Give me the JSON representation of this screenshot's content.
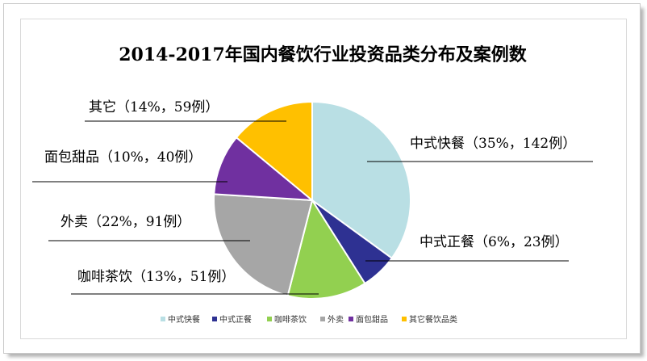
{
  "chart_data": {
    "type": "pie",
    "title": "2014-2017年国内餐饮行业投资品类分布及案例数",
    "slices": [
      {
        "name": "中式快餐",
        "label": "中式快餐（35%，142例）",
        "percent": 35,
        "count": 142,
        "color": "#b9dfe4"
      },
      {
        "name": "中式正餐",
        "label": "中式正餐（6%，23例）",
        "percent": 6,
        "count": 23,
        "color": "#2e3192"
      },
      {
        "name": "咖啡茶饮",
        "label": "咖啡茶饮（13%，51例）",
        "percent": 13,
        "count": 51,
        "color": "#92d050"
      },
      {
        "name": "外卖",
        "label": "外卖（22%，91例）",
        "percent": 22,
        "count": 91,
        "color": "#a6a6a6"
      },
      {
        "name": "面包甜品",
        "label": "面包甜品（10%，40例）",
        "percent": 10,
        "count": 40,
        "color": "#7030a0"
      },
      {
        "name": "其它",
        "label": "其它（14%，59例）",
        "percent": 14,
        "count": 59,
        "color": "#ffc000"
      }
    ],
    "legend": {
      "placement": "bottom",
      "entries": [
        "中式快餐",
        "中式正餐",
        "咖啡茶饮",
        "外卖",
        "面包甜品",
        "其它餐饮品类"
      ]
    }
  }
}
